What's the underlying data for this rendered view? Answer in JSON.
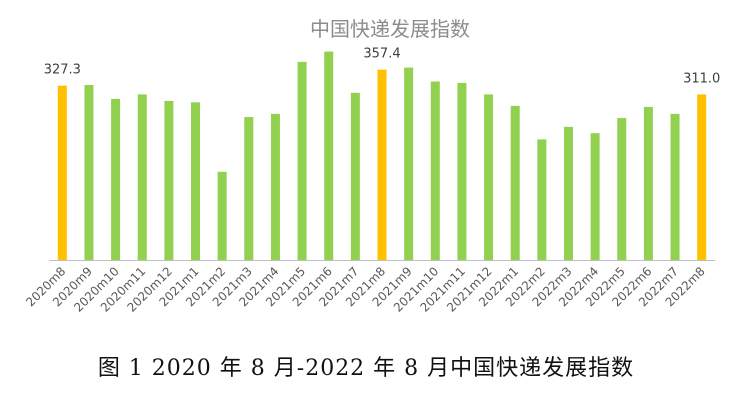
{
  "chart_data": {
    "type": "bar",
    "title": "中国快递发展指数",
    "xlabel": "",
    "ylabel": "",
    "ylim": [
      0,
      450
    ],
    "grid": false,
    "categories": [
      "2020m8",
      "2020m9",
      "2020m10",
      "2020m11",
      "2020m12",
      "2021m1",
      "2021m2",
      "2021m3",
      "2021m4",
      "2021m5",
      "2021m6",
      "2021m7",
      "2021m8",
      "2021m9",
      "2021m10",
      "2021m11",
      "2021m12",
      "2022m1",
      "2022m2",
      "2022m3",
      "2022m4",
      "2022m5",
      "2022m6",
      "2022m7",
      "2022m8"
    ],
    "values": [
      327.3,
      328.6,
      302.5,
      311.0,
      298.7,
      296.1,
      165.7,
      268.5,
      274.4,
      372.1,
      391.5,
      314.0,
      357.4,
      361.4,
      335.2,
      332.6,
      311.0,
      289.5,
      226.5,
      250.0,
      238.1,
      266.6,
      287.5,
      274.4,
      311.0
    ],
    "highlight_indices": [
      0,
      12,
      24
    ],
    "data_labels": [
      {
        "index": 0,
        "text": "327.3"
      },
      {
        "index": 12,
        "text": "357.4"
      },
      {
        "index": 24,
        "text": "311.0"
      }
    ],
    "colors": {
      "bar": "#92d050",
      "highlight": "#ffc000",
      "axis": "#bfbfbf"
    }
  },
  "caption": "图 1 2020 年 8 月-2022 年 8 月中国快递发展指数"
}
